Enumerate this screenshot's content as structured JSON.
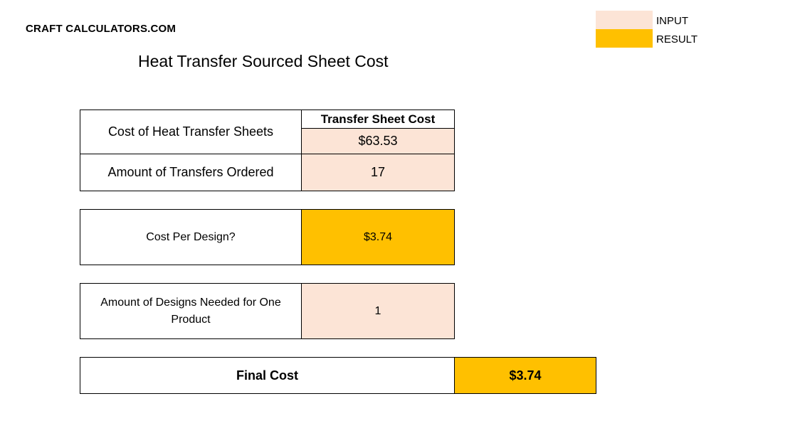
{
  "brand": "CRAFT CALCULATORS.COM",
  "title": "Heat Transfer Sourced Sheet Cost",
  "legend": {
    "input_label": "INPUT",
    "result_label": "RESULT",
    "input_color": "#fce4d6",
    "result_color": "#ffc000"
  },
  "rows": {
    "sheet_cost": {
      "label": "Cost of Heat Transfer Sheets",
      "header": "Transfer Sheet Cost",
      "value": "$63.53"
    },
    "transfers_ordered": {
      "label": "Amount of Transfers Ordered",
      "value": "17"
    },
    "cost_per_design": {
      "label": "Cost Per Design?",
      "value": "$3.74"
    },
    "designs_needed": {
      "label": "Amount of Designs Needed for One Product",
      "value": "1"
    },
    "final_cost": {
      "label": "Final Cost",
      "value": "$3.74"
    }
  }
}
